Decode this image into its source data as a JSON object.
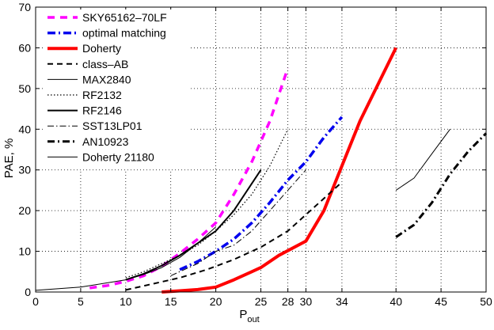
{
  "chart_data": {
    "type": "line",
    "title": "",
    "xlabel": "P",
    "xlabel_subscript": "out",
    "ylabel": "PAE, %",
    "xlim": [
      0,
      50
    ],
    "ylim": [
      0,
      70
    ],
    "x_ticks": [
      0,
      5,
      10,
      15,
      20,
      25,
      28,
      30,
      34,
      40,
      45,
      50
    ],
    "y_ticks": [
      0,
      10,
      20,
      30,
      40,
      50,
      60,
      70
    ],
    "grid": true,
    "legend_position": "top-left",
    "series": [
      {
        "name": "SKY65162–70LF",
        "color": "#ff00ff",
        "dash": "9,7",
        "width": 3.5,
        "points": [
          [
            6,
            1
          ],
          [
            8,
            1.6
          ],
          [
            10,
            2.6
          ],
          [
            12,
            4
          ],
          [
            14,
            6.3
          ],
          [
            16,
            9.5
          ],
          [
            18,
            13
          ],
          [
            20,
            17
          ],
          [
            22,
            24
          ],
          [
            24,
            32
          ],
          [
            26,
            42
          ],
          [
            28,
            55
          ]
        ]
      },
      {
        "name": "optimal matching",
        "color": "#0000ee",
        "dash": "10,4,2,4",
        "width": 3.5,
        "points": [
          [
            16,
            5.5
          ],
          [
            18,
            7.5
          ],
          [
            20,
            10
          ],
          [
            22,
            13
          ],
          [
            24,
            17
          ],
          [
            26,
            22
          ],
          [
            28,
            27.5
          ],
          [
            30,
            32
          ],
          [
            32,
            38
          ],
          [
            34,
            43
          ]
        ]
      },
      {
        "name": "Doherty",
        "color": "#ff0000",
        "dash": "",
        "width": 4,
        "points": [
          [
            14,
            0
          ],
          [
            16,
            0.3
          ],
          [
            18,
            0.6
          ],
          [
            20,
            1.2
          ],
          [
            22,
            3
          ],
          [
            24,
            5
          ],
          [
            25,
            6
          ],
          [
            27,
            9
          ],
          [
            30,
            12.5
          ],
          [
            32,
            20
          ],
          [
            34,
            31
          ],
          [
            36,
            42
          ],
          [
            38,
            51
          ],
          [
            40,
            60
          ]
        ]
      },
      {
        "name": "class–AB",
        "color": "#000000",
        "dash": "7,5",
        "width": 2,
        "points": [
          [
            10,
            0.5
          ],
          [
            13,
            2
          ],
          [
            16,
            3.5
          ],
          [
            19,
            5.5
          ],
          [
            22,
            8
          ],
          [
            25,
            11
          ],
          [
            28,
            15
          ],
          [
            30,
            19
          ],
          [
            32,
            23
          ],
          [
            34,
            27
          ]
        ]
      },
      {
        "name": "MAX2840",
        "color": "#000000",
        "dash": "",
        "width": 1,
        "points": [
          [
            40,
            25
          ],
          [
            42,
            28
          ],
          [
            44,
            34
          ],
          [
            46,
            40
          ]
        ]
      },
      {
        "name": "RF2132",
        "color": "#000000",
        "dash": "1.5,2.5",
        "width": 1.2,
        "points": [
          [
            10,
            3.5
          ],
          [
            12,
            5
          ],
          [
            14,
            7
          ],
          [
            16,
            9
          ],
          [
            18,
            11.5
          ],
          [
            20,
            15
          ],
          [
            22,
            19
          ],
          [
            24,
            24
          ],
          [
            26,
            31
          ],
          [
            28,
            40
          ]
        ]
      },
      {
        "name": "RF2146",
        "color": "#000000",
        "dash": "",
        "width": 2,
        "points": [
          [
            10,
            3
          ],
          [
            12,
            4.5
          ],
          [
            14,
            6.5
          ],
          [
            16,
            9
          ],
          [
            18,
            12
          ],
          [
            20,
            15
          ],
          [
            22,
            20
          ],
          [
            25,
            30
          ]
        ]
      },
      {
        "name": "SST13LP01",
        "color": "#000000",
        "dash": "8,3,1.5,3",
        "width": 1,
        "points": [
          [
            15,
            4
          ],
          [
            18,
            7
          ],
          [
            20,
            10
          ],
          [
            22,
            11.5
          ],
          [
            24,
            15
          ],
          [
            26,
            20
          ],
          [
            28,
            25
          ],
          [
            30,
            30
          ]
        ]
      },
      {
        "name": "AN10923",
        "color": "#000000",
        "dash": "9,4,2,4",
        "width": 3,
        "points": [
          [
            40,
            13.5
          ],
          [
            42,
            16.5
          ],
          [
            44,
            22
          ],
          [
            46,
            29
          ],
          [
            48,
            34.5
          ],
          [
            50,
            39
          ]
        ]
      },
      {
        "name": "Doherty 21180",
        "color": "#000000",
        "dash": "",
        "width": 1,
        "points": [
          [
            0,
            0.4
          ],
          [
            5,
            1.2
          ],
          [
            10,
            3
          ],
          [
            12,
            4.3
          ],
          [
            14,
            6
          ],
          [
            16,
            8.5
          ],
          [
            18,
            12
          ],
          [
            20,
            16
          ]
        ]
      }
    ]
  }
}
